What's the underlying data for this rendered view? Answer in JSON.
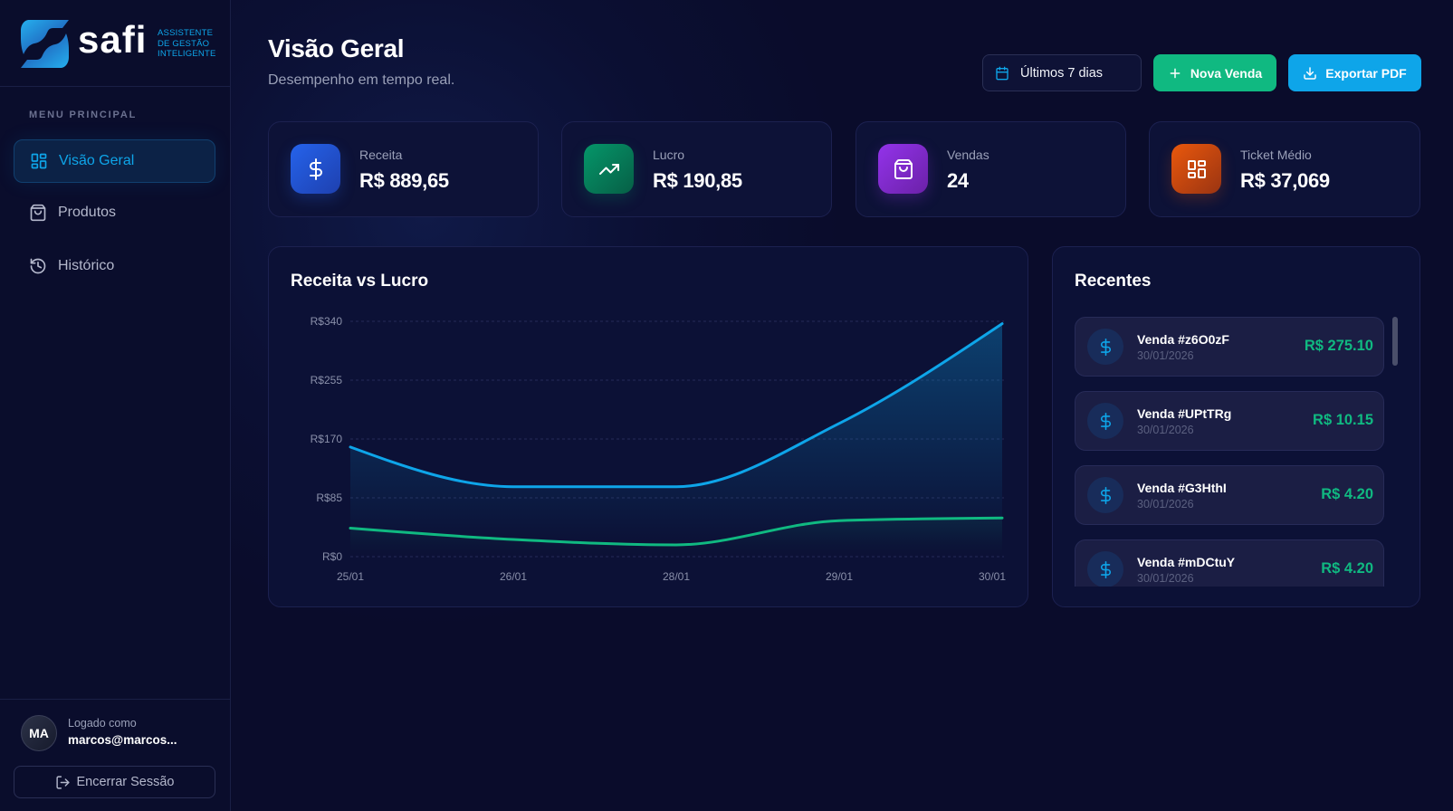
{
  "colors": {
    "accent": "#0ea5e9",
    "success": "#10b981",
    "kpi-blue-from": "#2563eb",
    "kpi-blue-to": "#1e40af",
    "kpi-green-from": "#059669",
    "kpi-green-to": "#065f46",
    "kpi-purple-from": "#9333ea",
    "kpi-purple-to": "#6b21a8",
    "kpi-orange-from": "#ea580c",
    "kpi-orange-to": "#9a3412"
  },
  "app": {
    "name": "safi",
    "tagline": [
      "ASSISTENTE",
      "DE GESTÃO",
      "INTELIGENTE"
    ]
  },
  "sidebar": {
    "section_label": "MENU PRINCIPAL",
    "items": [
      {
        "label": "Visão Geral",
        "icon": "dashboard-grid-icon",
        "active": true
      },
      {
        "label": "Produtos",
        "icon": "shopping-bag-icon",
        "active": false
      },
      {
        "label": "Histórico",
        "icon": "history-icon",
        "active": false
      }
    ],
    "user": {
      "initials": "MA",
      "caption": "Logado como",
      "email": "marcos@marcos..."
    },
    "logout_label": "Encerrar Sessão"
  },
  "header": {
    "title": "Visão Geral",
    "subtitle": "Desempenho em tempo real.",
    "date_range": "Últimos 7 dias",
    "new_sale_label": "Nova Venda",
    "export_label": "Exportar PDF"
  },
  "kpis": [
    {
      "label": "Receita",
      "value": "R$ 889,65",
      "icon": "dollar-icon"
    },
    {
      "label": "Lucro",
      "value": "R$ 190,85",
      "icon": "trending-up-icon"
    },
    {
      "label": "Vendas",
      "value": "24",
      "icon": "shopping-bag-icon"
    },
    {
      "label": "Ticket Médio",
      "value": "R$ 37,069",
      "icon": "dashboard-grid-icon"
    }
  ],
  "chart": {
    "title": "Receita vs Lucro"
  },
  "chart_data": {
    "type": "area",
    "title": "Receita vs Lucro",
    "xlabel": "",
    "ylabel": "",
    "categories": [
      "25/01",
      "26/01",
      "28/01",
      "29/01",
      "30/01"
    ],
    "series": [
      {
        "name": "Receita",
        "color": "#0ea5e9",
        "fill": true,
        "values": [
          158.4,
          101.1,
          101.1,
          192.5,
          336.55
        ]
      },
      {
        "name": "Lucro",
        "color": "#10b981",
        "fill": false,
        "values": [
          41.2,
          24.8,
          17.0,
          52.0,
          55.85
        ]
      }
    ],
    "yticks": [
      0,
      85,
      170,
      255,
      340
    ],
    "ytick_labels": [
      "R$0",
      "R$85",
      "R$170",
      "R$255",
      "R$340"
    ],
    "ylim": [
      0,
      340
    ],
    "grid": "horizontal-dashed",
    "legend": "none"
  },
  "recent": {
    "title": "Recentes",
    "items": [
      {
        "title": "Venda #z6O0zF",
        "date": "30/01/2026",
        "amount": "R$ 275.10"
      },
      {
        "title": "Venda #UPtTRg",
        "date": "30/01/2026",
        "amount": "R$ 10.15"
      },
      {
        "title": "Venda #G3HthI",
        "date": "30/01/2026",
        "amount": "R$ 4.20"
      },
      {
        "title": "Venda #mDCtuY",
        "date": "30/01/2026",
        "amount": "R$ 4.20"
      }
    ]
  }
}
